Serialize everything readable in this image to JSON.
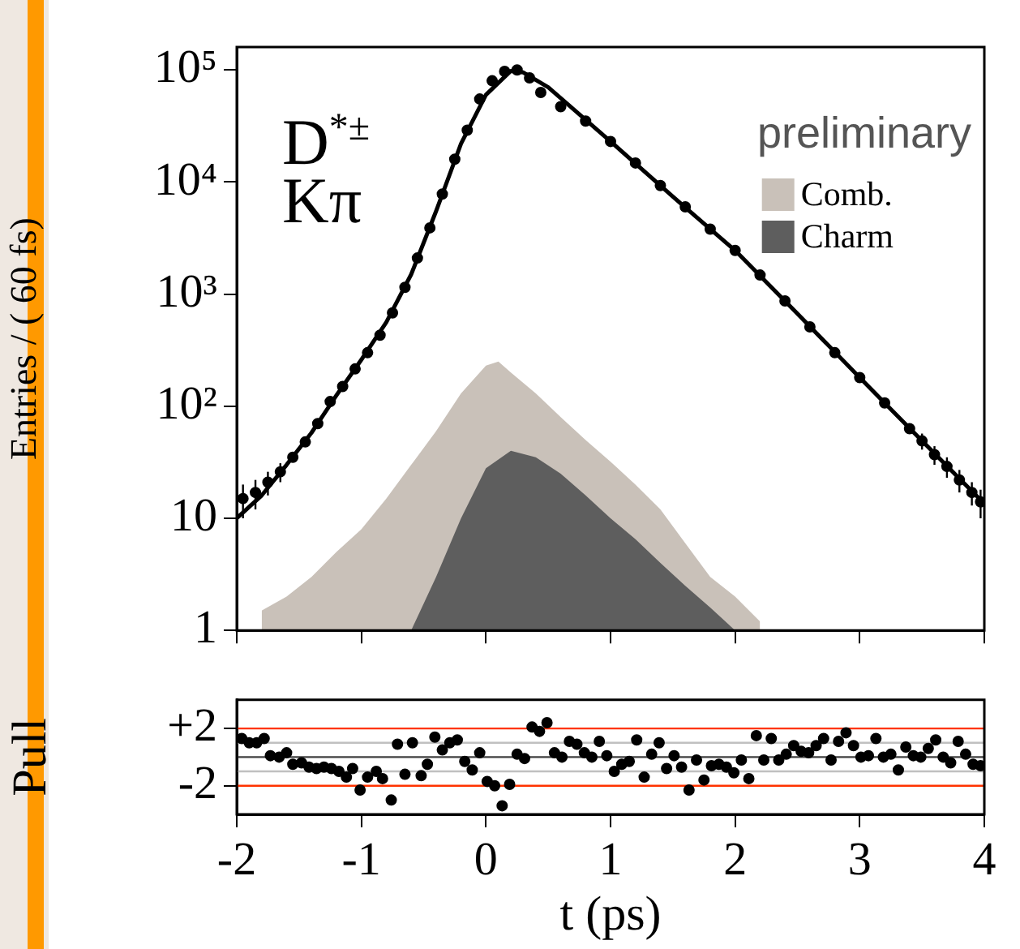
{
  "chart_data": [
    {
      "type": "line",
      "ylabel": "Entries / ( 60 fs)",
      "log": true,
      "legend": "top right",
      "grid": false,
      "tick_labels": "y",
      "xlim": [
        -2,
        4
      ],
      "xticks": [
        -2,
        -1,
        0,
        1,
        2,
        3,
        4
      ],
      "ylim": [
        1,
        160000
      ],
      "yticks": [
        1,
        10,
        {
          "value": 100,
          "label": "10²"
        },
        {
          "value": 1000,
          "label": "10³"
        },
        {
          "value": 10000,
          "label": "10⁴"
        },
        {
          "value": 100000,
          "label": "10⁵"
        }
      ],
      "annotations": [
        "D$^{*±}$",
        "Kπ",
        "preliminary"
      ],
      "series": [
        {
          "name": "Comb.",
          "type": "area",
          "color": "#c9c1b9",
          "x": [
            -1.8,
            -1.6,
            -1.4,
            -1.2,
            -1.0,
            -0.8,
            -0.6,
            -0.4,
            -0.2,
            0.0,
            0.1,
            0.2,
            0.4,
            0.6,
            0.8,
            1.0,
            1.2,
            1.4,
            1.6,
            1.8,
            2.0,
            2.2
          ],
          "values": [
            1.5,
            2,
            3,
            5,
            8,
            15,
            30,
            60,
            130,
            230,
            250,
            200,
            130,
            80,
            50,
            32,
            20,
            12,
            6,
            3,
            2,
            1.2
          ]
        },
        {
          "name": "Charm",
          "type": "area",
          "color": "#5e5e5e",
          "x": [
            -0.6,
            -0.4,
            -0.2,
            0.0,
            0.2,
            0.4,
            0.6,
            0.8,
            1.0,
            1.2,
            1.4,
            1.6,
            1.8,
            2.0
          ],
          "values": [
            1,
            3,
            10,
            28,
            40,
            35,
            25,
            16,
            10,
            6.5,
            4,
            2.5,
            1.6,
            1
          ]
        },
        {
          "type": "line",
          "marker": "none",
          "color": "#000000",
          "x": [
            -2,
            -1.8,
            -1.6,
            -1.4,
            -1.2,
            -1.0,
            -0.8,
            -0.6,
            -0.4,
            -0.2,
            0,
            0.2,
            0.3,
            0.5,
            1.0,
            1.5,
            2.0,
            2.5,
            3.0,
            3.5,
            4.0
          ],
          "values": [
            10,
            16,
            30,
            58,
            125,
            260,
            560,
            1500,
            5500,
            22000,
            60000,
            98000,
            95000,
            70000,
            23000,
            7400,
            2450,
            670,
            180,
            49,
            13.5
          ]
        },
        {
          "type": "scatter",
          "marker": "circle",
          "color": "#000000",
          "x": [
            -1.95,
            -1.85,
            -1.75,
            -1.65,
            -1.55,
            -1.45,
            -1.35,
            -1.25,
            -1.15,
            -1.05,
            -0.95,
            -0.85,
            -0.75,
            -0.65,
            -0.55,
            -0.45,
            -0.35,
            -0.25,
            -0.15,
            -0.05,
            0.05,
            0.15,
            0.25,
            0.35,
            0.44,
            0.6,
            0.8,
            1.0,
            1.2,
            1.4,
            1.6,
            1.8,
            2.0,
            2.2,
            2.4,
            2.6,
            2.8,
            3.0,
            3.2,
            3.4,
            3.5,
            3.6,
            3.7,
            3.8,
            3.9,
            3.97
          ],
          "values": [
            15,
            17,
            21,
            26,
            35,
            48,
            70,
            110,
            150,
            215,
            300,
            430,
            680,
            1150,
            2100,
            3900,
            7800,
            16000,
            29000,
            55000,
            80000,
            97000,
            100000,
            85000,
            63000,
            47000,
            35000,
            23000,
            14800,
            9300,
            6000,
            3800,
            2450,
            1480,
            870,
            510,
            300,
            180,
            107,
            63,
            49,
            37,
            29,
            22,
            17,
            14
          ],
          "errors": [
            5,
            5,
            5,
            5,
            null,
            null,
            null,
            null,
            null,
            null,
            null,
            null,
            null,
            null,
            null,
            null,
            null,
            null,
            null,
            null,
            null,
            null,
            null,
            null,
            null,
            null,
            null,
            null,
            null,
            null,
            null,
            null,
            null,
            null,
            null,
            null,
            null,
            null,
            null,
            null,
            8,
            7,
            6,
            5,
            4,
            4
          ]
        }
      ]
    },
    {
      "type": "scatter",
      "xlabel": "t (ps)",
      "ylabel": "Pull",
      "grid": false,
      "marker": "circle",
      "xlim": [
        -2,
        4
      ],
      "xticks": [
        -2,
        -1,
        0,
        1,
        2,
        3,
        4
      ],
      "ylim": [
        -4,
        4
      ],
      "yticks": [
        {
          "value": -2,
          "label": "-2"
        },
        {
          "value": 2,
          "label": "+2"
        }
      ],
      "ref_lines": [
        {
          "axis": "y",
          "value": 2,
          "color": "#ff3300"
        },
        {
          "axis": "y",
          "value": -2,
          "color": "#ff3300"
        },
        {
          "axis": "y",
          "value": 1,
          "color": "#c0c0c0"
        },
        {
          "axis": "y",
          "value": -1,
          "color": "#c0c0c0"
        },
        {
          "axis": "y",
          "value": 0,
          "color": "#404040"
        }
      ],
      "series": [
        {
          "color": "#000000",
          "x": [
            -1.96,
            -1.9,
            -1.84,
            -1.78,
            -1.73,
            -1.66,
            -1.6,
            -1.55,
            -1.48,
            -1.42,
            -1.36,
            -1.3,
            -1.24,
            -1.18,
            -1.12,
            -1.07,
            -1.01,
            -0.95,
            -0.88,
            -0.83,
            -0.76,
            -0.71,
            -0.65,
            -0.59,
            -0.52,
            -0.47,
            -0.41,
            -0.35,
            -0.29,
            -0.23,
            -0.17,
            -0.11,
            -0.05,
            0.01,
            0.07,
            0.13,
            0.19,
            0.25,
            0.31,
            0.37,
            0.43,
            0.49,
            0.55,
            0.61,
            0.67,
            0.73,
            0.79,
            0.85,
            0.91,
            0.97,
            1.03,
            1.09,
            1.15,
            1.21,
            1.27,
            1.33,
            1.39,
            1.45,
            1.51,
            1.57,
            1.63,
            1.69,
            1.75,
            1.81,
            1.87,
            1.93,
            1.99,
            2.05,
            2.11,
            2.17,
            2.23,
            2.29,
            2.35,
            2.41,
            2.47,
            2.53,
            2.59,
            2.65,
            2.71,
            2.77,
            2.83,
            2.89,
            2.95,
            3.01,
            3.07,
            3.13,
            3.19,
            3.25,
            3.31,
            3.37,
            3.43,
            3.49,
            3.55,
            3.61,
            3.67,
            3.73,
            3.79,
            3.85,
            3.91,
            3.97
          ],
          "values": [
            1.3,
            1.0,
            1.0,
            1.3,
            0.1,
            0.0,
            0.3,
            -0.5,
            -0.4,
            -0.7,
            -0.8,
            -0.7,
            -0.8,
            -1.0,
            -1.4,
            -0.8,
            -2.3,
            -1.4,
            -1.0,
            -1.5,
            -3.0,
            0.9,
            -1.2,
            1.0,
            -1.3,
            -0.5,
            1.4,
            0.5,
            1.0,
            1.2,
            -0.3,
            -0.9,
            0.3,
            -1.7,
            -2.0,
            -3.4,
            -1.9,
            0.2,
            -0.1,
            2.1,
            1.8,
            2.4,
            0.3,
            0.0,
            1.1,
            0.9,
            0.3,
            0.0,
            1.1,
            0.1,
            -1.0,
            -0.5,
            -0.3,
            1.2,
            -1.4,
            0.2,
            1.0,
            -0.8,
            0.1,
            -0.7,
            -2.3,
            -0.2,
            -1.6,
            -0.6,
            -0.5,
            -0.7,
            -1.1,
            -0.2,
            -1.5,
            1.5,
            -0.2,
            1.3,
            -0.2,
            0.2,
            0.8,
            0.4,
            0.3,
            0.8,
            1.3,
            -0.2,
            1.1,
            1.7,
            0.8,
            0.0,
            0.1,
            1.3,
            0.0,
            0.2,
            -0.9,
            0.7,
            0.1,
            0.0,
            0.6,
            1.2,
            0.0,
            -0.4,
            1.1,
            0.2,
            -0.5,
            -0.6
          ]
        }
      ]
    }
  ]
}
